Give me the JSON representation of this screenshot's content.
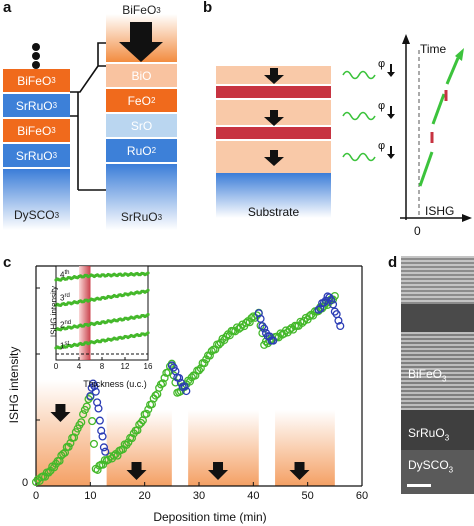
{
  "panels": {
    "a": {
      "label": "a",
      "left_stack": [
        "BiFeO",
        "SrRuO",
        "BiFeO",
        "SrRuO"
      ],
      "left_subs": [
        "3",
        "3",
        "3",
        "3"
      ],
      "left_substrate": "DySCO",
      "left_substrate_sub": "3",
      "right_top": "BiFeO",
      "right_top_sub": "3",
      "right_stack": [
        "BiO",
        "FeO",
        "SrO",
        "RuO"
      ],
      "right_subs": [
        "",
        "2",
        "",
        "2"
      ],
      "right_substrate": "SrRuO",
      "right_substrate_sub": "3"
    },
    "b": {
      "label": "b",
      "substrate": "Substrate",
      "phi": "φ",
      "time_label": "Time",
      "ishg_label": "ISHG",
      "zero_label": "0"
    },
    "c": {
      "label": "c",
      "xlabel": "Deposition time (min)",
      "ylabel": "ISHG intensity",
      "x_ticks": [
        "0",
        "10",
        "20",
        "30",
        "40",
        "50",
        "60"
      ],
      "y_zero": "0",
      "inset": {
        "xlabel": "Thickness (u.c.)",
        "ylabel": "ISHG intensity",
        "x_ticks": [
          "0",
          "4",
          "8",
          "12",
          "16"
        ],
        "curve_labels": [
          "4",
          "3",
          "2",
          "1"
        ],
        "curve_sups": [
          "th",
          "rd",
          "nd",
          "st"
        ]
      }
    },
    "d": {
      "label": "d",
      "layers": [
        "BiFeO",
        "SrRuO",
        "DySCO"
      ],
      "layer_subs": [
        "3",
        "3",
        "3"
      ]
    }
  },
  "chart_data": {
    "type": "scatter",
    "title": "",
    "xlabel": "Deposition time (min)",
    "ylabel": "ISHG intensity",
    "xlim": [
      0,
      60
    ],
    "series": [
      {
        "x": [
          0,
          2,
          4,
          6,
          8,
          9,
          10,
          11,
          13,
          15,
          17,
          19,
          21,
          23,
          24,
          25,
          26,
          28,
          30,
          32,
          34,
          36,
          38,
          40,
          41,
          42,
          44,
          46,
          48,
          50,
          52,
          54,
          55
        ],
        "y": [
          0.02,
          0.06,
          0.12,
          0.2,
          0.3,
          0.38,
          0.45,
          0.08,
          0.13,
          0.16,
          0.22,
          0.3,
          0.4,
          0.5,
          0.56,
          0.61,
          0.46,
          0.52,
          0.58,
          0.66,
          0.72,
          0.77,
          0.8,
          0.84,
          0.86,
          0.71,
          0.74,
          0.77,
          0.8,
          0.84,
          0.88,
          0.92,
          0.95
        ]
      },
      {
        "x": [
          10,
          10.5,
          11,
          11.5,
          12,
          12.5,
          13,
          25,
          26,
          27,
          28,
          41,
          42,
          43,
          44,
          52,
          53,
          54,
          55,
          56
        ],
        "y": [
          0.45,
          0.52,
          0.47,
          0.38,
          0.28,
          0.2,
          0.14,
          0.61,
          0.55,
          0.5,
          0.47,
          0.86,
          0.78,
          0.74,
          0.72,
          0.88,
          0.92,
          0.95,
          0.88,
          0.8
        ]
      }
    ]
  }
}
